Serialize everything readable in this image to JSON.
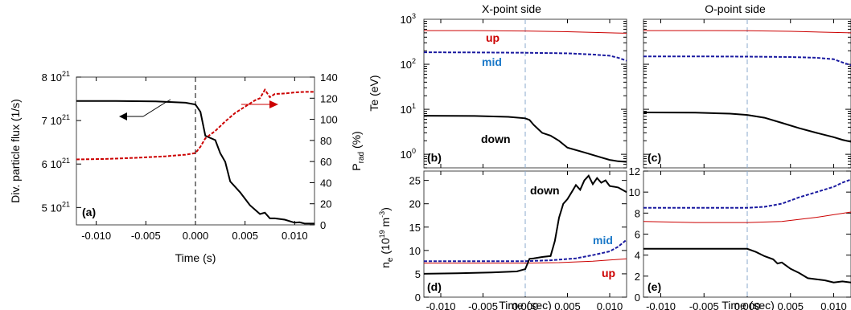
{
  "chart_data": [
    {
      "type": "line",
      "panel": "(a)",
      "xlabel": "Time (s)",
      "ylabel_left": "Div. particle flux (1/s)",
      "ylabel_right_main": "P",
      "ylabel_right_sub": "rad",
      "ylabel_right_unit": " (%)",
      "xlim": [
        -0.012,
        0.012
      ],
      "ylim_left": [
        4.6e+21,
        8e+21
      ],
      "ylim_right": [
        0,
        140
      ],
      "x_ticks": [
        -0.01,
        -0.005,
        0.0,
        0.005,
        0.01
      ],
      "x_tick_labels": [
        "-0.010",
        "-0.005",
        "0.000",
        "0.005",
        "0.010"
      ],
      "y_left_ticks": [
        5e+21,
        6e+21,
        7e+21,
        8e+21
      ],
      "y_left_tick_labels": [
        {
          "mant": "5 10",
          "exp": "21"
        },
        {
          "mant": "6 10",
          "exp": "21"
        },
        {
          "mant": "7 10",
          "exp": "21"
        },
        {
          "mant": "8 10",
          "exp": "21"
        }
      ],
      "y_right_ticks": [
        0,
        20,
        40,
        60,
        80,
        100,
        120,
        140
      ],
      "y_right_tick_labels": [
        "0",
        "20",
        "40",
        "60",
        "80",
        "100",
        "120",
        "140"
      ],
      "series": [
        {
          "axis": "left",
          "color": "#000000",
          "style": "solid",
          "x": [
            -0.012,
            -0.008,
            -0.004,
            -0.001,
            0.0,
            0.0005,
            0.001,
            0.002,
            0.0025,
            0.003,
            0.0035,
            0.0045,
            0.0055,
            0.0065,
            0.007,
            0.0075,
            0.008,
            0.009,
            0.01,
            0.0105,
            0.011,
            0.012
          ],
          "y": [
            7.45e+21,
            7.45e+21,
            7.44e+21,
            7.41e+21,
            7.37e+21,
            7.2e+21,
            6.65e+21,
            6.55e+21,
            6.25e+21,
            6.05e+21,
            5.6e+21,
            5.35e+21,
            5.05e+21,
            4.85e+21,
            4.88e+21,
            4.75e+21,
            4.75e+21,
            4.72e+21,
            4.65e+21,
            4.66e+21,
            4.63e+21,
            4.63e+21
          ]
        },
        {
          "axis": "right",
          "color": "#cc0000",
          "style": "dashed",
          "x": [
            -0.012,
            -0.009,
            -0.006,
            -0.003,
            -0.001,
            0.0,
            0.0005,
            0.001,
            0.002,
            0.003,
            0.004,
            0.005,
            0.006,
            0.0065,
            0.007,
            0.0075,
            0.008,
            0.009,
            0.01,
            0.011,
            0.012
          ],
          "y": [
            62,
            62.5,
            63.5,
            65,
            66.5,
            68,
            74,
            82,
            89,
            98,
            106,
            112,
            118,
            120,
            128,
            121,
            124,
            124.5,
            125.5,
            126,
            126
          ]
        }
      ],
      "dashed_vline_x": 0.0
    },
    {
      "type": "line",
      "panel": "(b)",
      "header": "X-point side",
      "ylabel": "Te (eV)",
      "yscale": "log",
      "xlim": [
        -0.012,
        0.012
      ],
      "ylim": [
        0.5,
        1000
      ],
      "y_ticks": [
        1,
        10,
        100,
        1000
      ],
      "y_tick_labels": [
        {
          "mant": "10",
          "exp": "0"
        },
        {
          "mant": "10",
          "exp": "1"
        },
        {
          "mant": "10",
          "exp": "2"
        },
        {
          "mant": "10",
          "exp": "3"
        }
      ],
      "series": [
        {
          "name": "up",
          "color": "#cc0000",
          "style": "solid",
          "x": [
            -0.012,
            -0.006,
            0.0,
            0.005,
            0.01,
            0.012
          ],
          "y": [
            560,
            560,
            550,
            530,
            500,
            490
          ]
        },
        {
          "name": "mid",
          "color": "#1a1aa0",
          "style": "dashed",
          "x": [
            -0.012,
            -0.006,
            0.0,
            0.005,
            0.008,
            0.01,
            0.011,
            0.012
          ],
          "y": [
            185,
            183,
            180,
            175,
            165,
            155,
            140,
            120
          ]
        },
        {
          "name": "down",
          "color": "#000000",
          "style": "solid",
          "x": [
            -0.012,
            -0.006,
            -0.002,
            0.0,
            0.0005,
            0.001,
            0.002,
            0.003,
            0.004,
            0.005,
            0.007,
            0.009,
            0.01,
            0.011,
            0.012
          ],
          "y": [
            7.2,
            7.1,
            6.8,
            6.3,
            5.8,
            4.5,
            3.0,
            2.6,
            2.0,
            1.4,
            1.1,
            0.85,
            0.75,
            0.7,
            0.68
          ]
        }
      ],
      "dashed_vline_x": 0.0,
      "vline_color": "#88aacc"
    },
    {
      "type": "line",
      "panel": "(c)",
      "header": "O-point side",
      "yscale": "log",
      "xlim": [
        -0.012,
        0.012
      ],
      "ylim": [
        0.5,
        1000
      ],
      "series": [
        {
          "name": "up",
          "color": "#cc0000",
          "style": "solid",
          "x": [
            -0.012,
            -0.006,
            0.0,
            0.005,
            0.01,
            0.012
          ],
          "y": [
            560,
            560,
            555,
            540,
            510,
            500
          ]
        },
        {
          "name": "mid",
          "color": "#1a1aa0",
          "style": "dashed",
          "x": [
            -0.012,
            -0.006,
            0.0,
            0.005,
            0.008,
            0.01,
            0.011,
            0.012
          ],
          "y": [
            150,
            150,
            148,
            145,
            140,
            130,
            110,
            95
          ]
        },
        {
          "name": "down",
          "color": "#000000",
          "style": "solid",
          "x": [
            -0.012,
            -0.006,
            -0.002,
            0.0,
            0.002,
            0.004,
            0.006,
            0.008,
            0.01,
            0.011,
            0.012
          ],
          "y": [
            8.5,
            8.4,
            8.0,
            7.5,
            6.5,
            5.0,
            3.8,
            3.0,
            2.4,
            2.1,
            1.9
          ]
        }
      ],
      "dashed_vline_x": 0.0,
      "vline_color": "#88aacc"
    },
    {
      "type": "line",
      "panel": "(d)",
      "xlabel": "Time (sec)",
      "ylabel_main": "n",
      "ylabel_sub": "e",
      "ylabel_mid": " (10",
      "ylabel_exp1": "19",
      "ylabel_mid2": " m",
      "ylabel_exp2": "-3",
      "ylabel_end": ")",
      "xlim": [
        -0.012,
        0.012
      ],
      "ylim": [
        0,
        27
      ],
      "x_ticks": [
        -0.01,
        -0.005,
        0.0,
        0.005,
        0.01
      ],
      "x_tick_labels": [
        "-0.010",
        "-0.005",
        "0.000",
        "0.005",
        "0.010"
      ],
      "y_ticks": [
        0,
        5,
        10,
        15,
        20,
        25
      ],
      "y_tick_labels": [
        "0",
        "5",
        "10",
        "15",
        "20",
        "25"
      ],
      "series": [
        {
          "name": "up",
          "color": "#cc0000",
          "style": "solid",
          "x": [
            -0.012,
            -0.006,
            0.0,
            0.004,
            0.008,
            0.012
          ],
          "y": [
            7.3,
            7.3,
            7.3,
            7.4,
            7.7,
            8.2
          ]
        },
        {
          "name": "mid",
          "color": "#1a1aa0",
          "style": "dashed",
          "x": [
            -0.012,
            -0.006,
            0.0,
            0.003,
            0.006,
            0.008,
            0.01,
            0.011,
            0.012
          ],
          "y": [
            7.7,
            7.7,
            7.7,
            7.9,
            8.3,
            9.0,
            9.8,
            10.8,
            12.3
          ]
        },
        {
          "name": "down",
          "color": "#000000",
          "style": "solid",
          "x": [
            -0.012,
            -0.008,
            -0.004,
            -0.001,
            0.0,
            0.0005,
            0.001,
            0.002,
            0.003,
            0.0035,
            0.004,
            0.0045,
            0.005,
            0.0055,
            0.006,
            0.0065,
            0.007,
            0.0075,
            0.008,
            0.0085,
            0.009,
            0.0095,
            0.01,
            0.011,
            0.012
          ],
          "y": [
            5.0,
            5.1,
            5.3,
            5.5,
            6.0,
            8.2,
            8.3,
            8.6,
            8.8,
            12.0,
            17.0,
            20.0,
            21.0,
            22.5,
            24.0,
            23.0,
            25.0,
            26.0,
            24.2,
            25.5,
            24.5,
            25.0,
            23.8,
            23.5,
            22.5
          ]
        }
      ],
      "dashed_vline_x": 0.0,
      "vline_color": "#88aacc"
    },
    {
      "type": "line",
      "panel": "(e)",
      "xlabel": "Time (sec)",
      "xlim": [
        -0.012,
        0.012
      ],
      "ylim": [
        0,
        12
      ],
      "x_ticks": [
        -0.01,
        -0.005,
        0.0,
        0.005,
        0.01
      ],
      "x_tick_labels": [
        "-0.010",
        "-0.005",
        "0.000",
        "0.005",
        "0.010"
      ],
      "y_ticks": [
        0,
        2,
        4,
        6,
        8,
        10,
        12
      ],
      "y_tick_labels": [
        "0",
        "2",
        "4",
        "6",
        "8",
        "10",
        "12"
      ],
      "series": [
        {
          "name": "up",
          "color": "#cc0000",
          "style": "solid",
          "x": [
            -0.012,
            -0.006,
            0.0,
            0.004,
            0.008,
            0.012
          ],
          "y": [
            7.2,
            7.1,
            7.1,
            7.2,
            7.6,
            8.1
          ]
        },
        {
          "name": "mid",
          "color": "#1a1aa0",
          "style": "dashed",
          "x": [
            -0.012,
            -0.006,
            0.0,
            0.002,
            0.004,
            0.006,
            0.008,
            0.01,
            0.011,
            0.012
          ],
          "y": [
            8.5,
            8.5,
            8.5,
            8.6,
            8.9,
            9.5,
            10.0,
            10.5,
            10.9,
            11.2
          ]
        },
        {
          "name": "down",
          "color": "#000000",
          "style": "solid",
          "x": [
            -0.012,
            -0.006,
            -0.002,
            0.0,
            0.001,
            0.002,
            0.003,
            0.0035,
            0.004,
            0.005,
            0.006,
            0.007,
            0.008,
            0.009,
            0.01,
            0.011,
            0.012
          ],
          "y": [
            4.6,
            4.6,
            4.6,
            4.6,
            4.3,
            3.9,
            3.6,
            3.2,
            3.3,
            2.7,
            2.3,
            1.8,
            1.7,
            1.6,
            1.4,
            1.5,
            1.4
          ]
        }
      ],
      "dashed_vline_x": 0.0,
      "vline_color": "#88aacc"
    }
  ],
  "annotations": {
    "up": "up",
    "mid": "mid",
    "down": "down"
  }
}
